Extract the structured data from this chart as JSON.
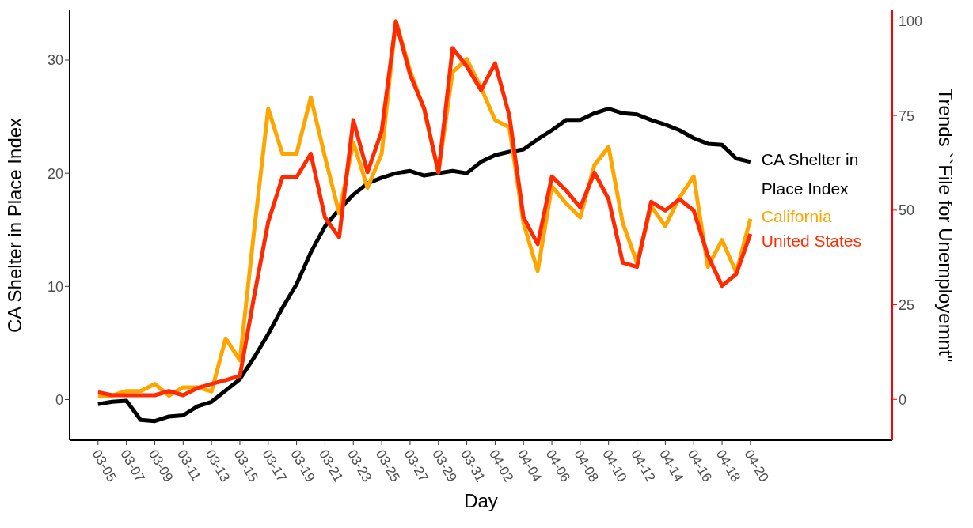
{
  "chart_data": {
    "type": "line",
    "xlabel": "Day",
    "ylabel": "CA Shelter in Place Index",
    "y2label": "Trends ``File for Unemployemnt\"",
    "x": [
      "--03-05",
      "--03-06",
      "--03-07",
      "--03-08",
      "--03-09",
      "--03-10",
      "--03-11",
      "--03-12",
      "--03-13",
      "--03-14",
      "--03-15",
      "--03-16",
      "--03-17",
      "--03-18",
      "--03-19",
      "--03-20",
      "--03-21",
      "--03-22",
      "--03-23",
      "--03-24",
      "--03-25",
      "--03-26",
      "--03-27",
      "--03-28",
      "--03-29",
      "--03-30",
      "--03-31",
      "--04-01",
      "--04-02",
      "--04-03",
      "--04-04",
      "--04-05",
      "--04-06",
      "--04-07",
      "--04-08",
      "--04-09",
      "--04-10",
      "--04-11",
      "--04-12",
      "--04-13",
      "--04-14",
      "--04-15",
      "--04-16",
      "--04-17",
      "--04-18",
      "--04-19",
      "--04-20"
    ],
    "series": [
      {
        "name": "CA Shelter in Place Index",
        "color": "#000000",
        "axis": "y",
        "values": [
          -0.4,
          -0.2,
          -0.1,
          -1.8,
          -1.9,
          -1.5,
          -1.4,
          -0.6,
          -0.2,
          0.8,
          1.8,
          3.7,
          5.8,
          8.1,
          10.2,
          13.0,
          15.3,
          16.8,
          18.1,
          19.1,
          19.6,
          20.0,
          20.2,
          19.8,
          20.0,
          20.2,
          20.0,
          21.0,
          21.6,
          21.9,
          22.1,
          23.0,
          23.8,
          24.7,
          24.7,
          25.3,
          25.7,
          25.3,
          25.2,
          24.7,
          24.3,
          23.8,
          23.1,
          22.6,
          22.5,
          21.3,
          21.0
        ]
      },
      {
        "name": "California",
        "color": "#ffa500",
        "axis": "y2",
        "values": [
          1.0,
          1.0,
          2.2,
          2.2,
          4.1,
          1.0,
          3.2,
          3.2,
          2.1,
          16.1,
          10.3,
          44.3,
          76.8,
          64.9,
          64.9,
          79.8,
          64.1,
          49.2,
          67.9,
          55.9,
          64.9,
          100,
          86.9,
          76.5,
          60.0,
          86.5,
          89.9,
          82.4,
          73.8,
          71.9,
          46.6,
          33.9,
          56.3,
          51.8,
          48.1,
          61.9,
          66.7,
          46.6,
          36.1,
          51.0,
          45.8,
          53.3,
          58.9,
          35.0,
          42.1,
          33.5,
          47.7
        ]
      },
      {
        "name": "United States",
        "color": "#ff2a00",
        "axis": "y2",
        "values": [
          1.9,
          1.1,
          1.1,
          1.1,
          1.1,
          2.2,
          1.1,
          3.0,
          4.1,
          5.1,
          6.2,
          27.1,
          46.9,
          58.7,
          58.7,
          64.9,
          48.1,
          42.8,
          73.8,
          60.0,
          70.9,
          99.8,
          85.8,
          76.8,
          60.0,
          92.8,
          88.0,
          81.7,
          88.8,
          75.0,
          48.1,
          41.0,
          58.9,
          55.2,
          50.7,
          59.9,
          52.9,
          36.1,
          35.0,
          52.2,
          49.9,
          52.9,
          49.9,
          38.0,
          30.0,
          33.1,
          43.7
        ]
      }
    ],
    "xlim": [
      "--03-03",
      "--04-30"
    ],
    "xticks": [
      {
        "value": "--03-05",
        "label": "03-05"
      },
      {
        "value": "--03-07",
        "label": "03-07"
      },
      {
        "value": "--03-09",
        "label": "03-09"
      },
      {
        "value": "--03-11",
        "label": "03-11"
      },
      {
        "value": "--03-13",
        "label": "03-13"
      },
      {
        "value": "--03-15",
        "label": "03-15"
      },
      {
        "value": "--03-17",
        "label": "03-17"
      },
      {
        "value": "--03-19",
        "label": "03-19"
      },
      {
        "value": "--03-21",
        "label": "03-21"
      },
      {
        "value": "--03-23",
        "label": "03-23"
      },
      {
        "value": "--03-25",
        "label": "03-25"
      },
      {
        "value": "--03-27",
        "label": "03-27"
      },
      {
        "value": "--03-29",
        "label": "03-29"
      },
      {
        "value": "--03-31",
        "label": "03-31"
      },
      {
        "value": "--04-02",
        "label": "04-02"
      },
      {
        "value": "--04-04",
        "label": "04-04"
      },
      {
        "value": "--04-06",
        "label": "04-06"
      },
      {
        "value": "--04-08",
        "label": "04-08"
      },
      {
        "value": "--04-10",
        "label": "04-10"
      },
      {
        "value": "--04-12",
        "label": "04-12"
      },
      {
        "value": "--04-14",
        "label": "04-14"
      },
      {
        "value": "--04-16",
        "label": "04-16"
      },
      {
        "value": "--04-18",
        "label": "04-18"
      },
      {
        "value": "--04-20",
        "label": "04-20"
      }
    ],
    "ylim": [
      -3.6,
      34.4
    ],
    "yticks": [
      0,
      10,
      20,
      30
    ],
    "y2lim": [
      -10.8,
      102.8
    ],
    "y2ticks": [
      0,
      25,
      50,
      75,
      100
    ],
    "grid": false,
    "legend": false,
    "marker": "none",
    "line_style": "solid"
  }
}
